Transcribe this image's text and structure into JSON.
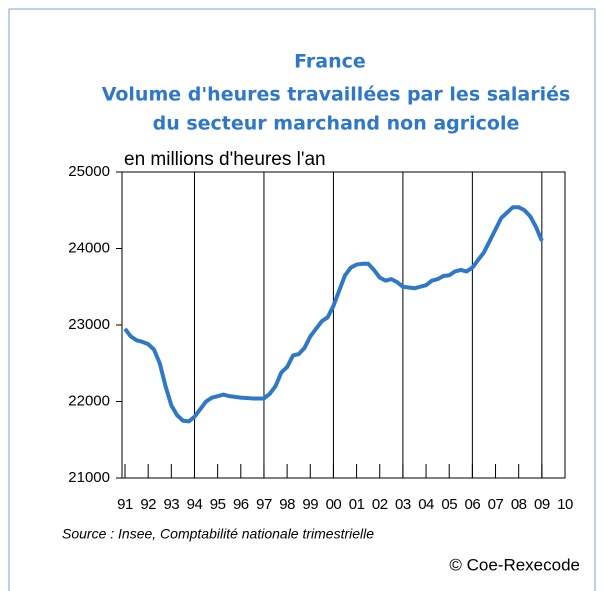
{
  "chart_data": {
    "type": "line",
    "title": "France",
    "subtitle": [
      "Volume d'heures travaillées par les salariés",
      "du secteur marchand non agricole"
    ],
    "y_label": "en millions d'heures l'an",
    "source": "Source : Insee, Comptabilité nationale trimestrielle",
    "copyright": "© Coe-Rexecode",
    "x": [
      1991,
      1991.25,
      1991.5,
      1991.75,
      1992,
      1992.25,
      1992.5,
      1992.75,
      1993,
      1993.25,
      1993.5,
      1993.75,
      1994,
      1994.25,
      1994.5,
      1994.75,
      1995,
      1995.25,
      1995.5,
      1995.75,
      1996,
      1996.5,
      1997,
      1997.25,
      1997.5,
      1997.75,
      1998,
      1998.25,
      1998.5,
      1998.75,
      1999,
      1999.25,
      1999.5,
      1999.75,
      2000,
      2000.25,
      2000.5,
      2000.75,
      2001,
      2001.25,
      2001.5,
      2001.75,
      2002,
      2002.25,
      2002.5,
      2002.75,
      2003,
      2003.25,
      2003.5,
      2003.75,
      2004,
      2004.25,
      2004.5,
      2004.75,
      2005,
      2005.25,
      2005.5,
      2005.75,
      2006,
      2006.25,
      2006.5,
      2006.75,
      2007,
      2007.25,
      2007.5,
      2007.75,
      2008,
      2008.25,
      2008.5,
      2008.75,
      2009
    ],
    "series": [
      {
        "name": "Volume d'heures",
        "color": "#2e78c7",
        "values": [
          22950,
          22850,
          22800,
          22780,
          22750,
          22680,
          22500,
          22200,
          21950,
          21820,
          21750,
          21740,
          21800,
          21900,
          22000,
          22050,
          22070,
          22090,
          22070,
          22060,
          22050,
          22040,
          22040,
          22100,
          22200,
          22380,
          22450,
          22600,
          22620,
          22700,
          22850,
          22950,
          23050,
          23100,
          23250,
          23450,
          23650,
          23750,
          23790,
          23800,
          23800,
          23720,
          23620,
          23580,
          23600,
          23560,
          23500,
          23490,
          23480,
          23500,
          23520,
          23580,
          23600,
          23640,
          23650,
          23700,
          23720,
          23700,
          23750,
          23850,
          23950,
          24100,
          24250,
          24400,
          24470,
          24540,
          24540,
          24500,
          24420,
          24280,
          24100
        ]
      }
    ],
    "xlim": [
      1990.87,
      2010
    ],
    "xticks": [
      {
        "value": 1991,
        "label": "91"
      },
      {
        "value": 1992,
        "label": "92"
      },
      {
        "value": 1993,
        "label": "93"
      },
      {
        "value": 1994,
        "label": "94"
      },
      {
        "value": 1995,
        "label": "95"
      },
      {
        "value": 1996,
        "label": "96"
      },
      {
        "value": 1997,
        "label": "97"
      },
      {
        "value": 1998,
        "label": "98"
      },
      {
        "value": 1999,
        "label": "99"
      },
      {
        "value": 2000,
        "label": "00"
      },
      {
        "value": 2001,
        "label": "01"
      },
      {
        "value": 2002,
        "label": "02"
      },
      {
        "value": 2003,
        "label": "03"
      },
      {
        "value": 2004,
        "label": "04"
      },
      {
        "value": 2005,
        "label": "05"
      },
      {
        "value": 2006,
        "label": "06"
      },
      {
        "value": 2007,
        "label": "07"
      },
      {
        "value": 2008,
        "label": "08"
      },
      {
        "value": 2009,
        "label": "09"
      },
      {
        "value": 2010,
        "label": "10"
      }
    ],
    "ylim": [
      21000,
      25000
    ],
    "yticks": [
      21000,
      22000,
      23000,
      24000,
      25000
    ]
  }
}
